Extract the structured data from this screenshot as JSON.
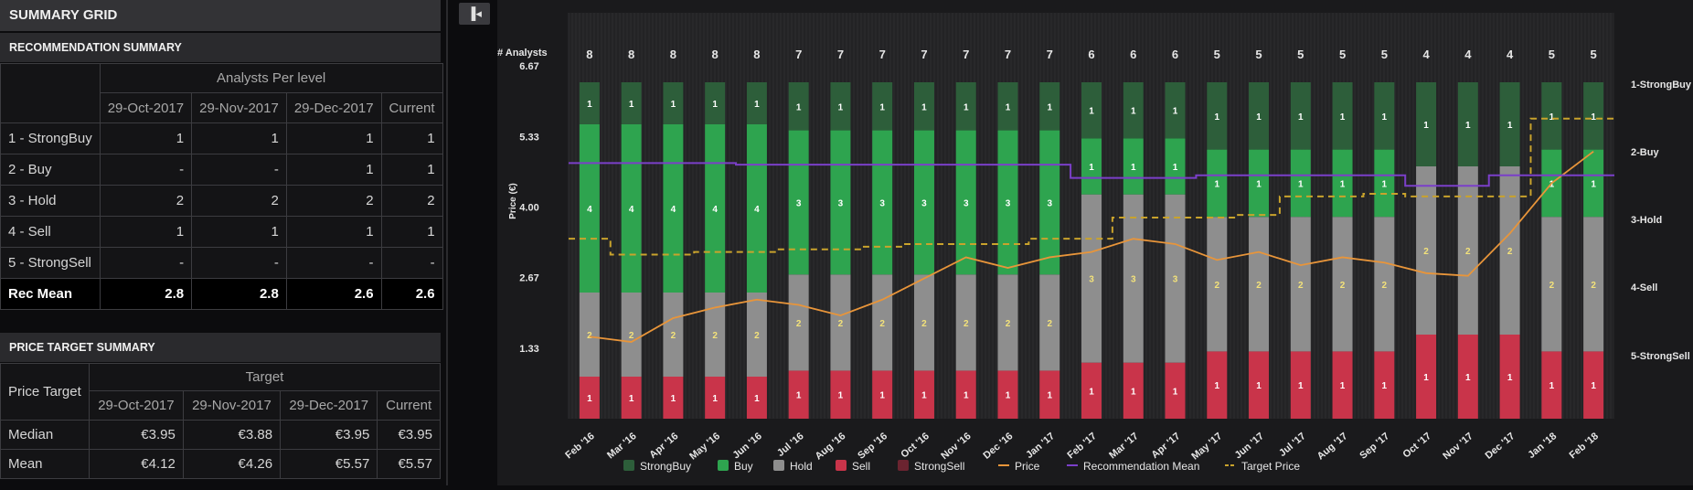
{
  "header": {
    "title": "SUMMARY GRID"
  },
  "recommendation_summary": {
    "title": "RECOMMENDATION SUMMARY",
    "group_header": "Analysts Per level",
    "columns": [
      "29-Oct-2017",
      "29-Nov-2017",
      "29-Dec-2017",
      "Current"
    ],
    "rows": [
      {
        "label": "1 - StrongBuy",
        "values": [
          "1",
          "1",
          "1",
          "1"
        ]
      },
      {
        "label": "2 - Buy",
        "values": [
          "-",
          "-",
          "1",
          "1"
        ]
      },
      {
        "label": "3 - Hold",
        "values": [
          "2",
          "2",
          "2",
          "2"
        ]
      },
      {
        "label": "4 - Sell",
        "values": [
          "1",
          "1",
          "1",
          "1"
        ]
      },
      {
        "label": "5 - StrongSell",
        "values": [
          "-",
          "-",
          "-",
          "-"
        ]
      }
    ],
    "mean_row": {
      "label": "Rec Mean",
      "values": [
        "2.8",
        "2.8",
        "2.6",
        "2.6"
      ]
    }
  },
  "price_target_summary": {
    "title": "PRICE TARGET SUMMARY",
    "row_header": "Price Target",
    "group_header": "Target",
    "columns": [
      "29-Oct-2017",
      "29-Nov-2017",
      "29-Dec-2017",
      "Current"
    ],
    "rows": [
      {
        "label": "Median",
        "values": [
          "€3.95",
          "€3.88",
          "€3.95",
          "€3.95"
        ]
      },
      {
        "label": "Mean",
        "values": [
          "€4.12",
          "€4.26",
          "€5.57",
          "€5.57"
        ]
      }
    ]
  },
  "toolbar": {
    "collapse_icon": "collapse-panel-icon"
  },
  "chart_data": {
    "type": "bar",
    "title": "",
    "analysts_label": "# Analysts",
    "ylabel": "Price (€)",
    "ylim": [
      0,
      7.67
    ],
    "y_ticks": [
      "6.67",
      "5.33",
      "4.00",
      "2.67",
      "1.33"
    ],
    "y_tick_values": [
      6.67,
      5.33,
      4.0,
      2.67,
      1.33
    ],
    "right_levels": [
      "1-StrongBuy",
      "2-Buy",
      "3-Hold",
      "4-Sell",
      "5-StrongSell"
    ],
    "categories": [
      "Feb '16",
      "Mar '16",
      "Apr '16",
      "May '16",
      "Jun '16",
      "Jul '16",
      "Aug '16",
      "Sep '16",
      "Oct '16",
      "Nov '16",
      "Dec '16",
      "Jan '17",
      "Feb '17",
      "Mar '17",
      "Apr '17",
      "May '17",
      "Jun '17",
      "Jul '17",
      "Aug '17",
      "Sep '17",
      "Oct '17",
      "Nov '17",
      "Dec '17",
      "Jan '18",
      "Feb '18"
    ],
    "analysts": [
      8,
      8,
      8,
      8,
      8,
      7,
      7,
      7,
      7,
      7,
      7,
      7,
      6,
      6,
      6,
      5,
      5,
      5,
      5,
      5,
      4,
      4,
      4,
      5,
      5
    ],
    "series": [
      {
        "name": "StrongBuy",
        "color": "#2d5e3a",
        "values": [
          1,
          1,
          1,
          1,
          1,
          1,
          1,
          1,
          1,
          1,
          1,
          1,
          1,
          1,
          1,
          1,
          1,
          1,
          1,
          1,
          1,
          1,
          1,
          1,
          1
        ]
      },
      {
        "name": "Buy",
        "color": "#2ea44f",
        "values": [
          4,
          4,
          4,
          4,
          4,
          3,
          3,
          3,
          3,
          3,
          3,
          3,
          1,
          1,
          1,
          1,
          1,
          1,
          1,
          1,
          0,
          0,
          0,
          1,
          1
        ]
      },
      {
        "name": "Hold",
        "color": "#8e8e8e",
        "values": [
          2,
          2,
          2,
          2,
          2,
          2,
          2,
          2,
          2,
          2,
          2,
          2,
          3,
          3,
          3,
          2,
          2,
          2,
          2,
          2,
          2,
          2,
          2,
          2,
          2
        ]
      },
      {
        "name": "Sell",
        "color": "#c9344a",
        "values": [
          1,
          1,
          1,
          1,
          1,
          1,
          1,
          1,
          1,
          1,
          1,
          1,
          1,
          1,
          1,
          1,
          1,
          1,
          1,
          1,
          1,
          1,
          1,
          1,
          1
        ]
      },
      {
        "name": "StrongSell",
        "color": "#6b2430",
        "values": [
          0,
          0,
          0,
          0,
          0,
          0,
          0,
          0,
          0,
          0,
          0,
          0,
          0,
          0,
          0,
          0,
          0,
          0,
          0,
          0,
          0,
          0,
          0,
          0,
          0
        ]
      }
    ],
    "lines": [
      {
        "name": "Price",
        "color": "#e8953a",
        "style": "solid",
        "values": [
          1.55,
          1.45,
          1.9,
          2.1,
          2.25,
          2.15,
          1.95,
          2.25,
          2.65,
          3.05,
          2.85,
          3.05,
          3.15,
          3.4,
          3.3,
          3.0,
          3.15,
          2.9,
          3.05,
          2.95,
          2.75,
          2.7,
          3.5,
          4.45,
          5.05
        ]
      },
      {
        "name": "Recommendation Mean",
        "color": "#7b3fc9",
        "style": "solid",
        "values": [
          4.83,
          4.83,
          4.83,
          4.83,
          4.8,
          4.8,
          4.8,
          4.8,
          4.8,
          4.8,
          4.8,
          4.8,
          4.55,
          4.55,
          4.55,
          4.6,
          4.6,
          4.6,
          4.6,
          4.6,
          4.4,
          4.4,
          4.6,
          4.6,
          4.6
        ]
      },
      {
        "name": "Target Price",
        "color": "#c9a32c",
        "style": "dashed",
        "values": [
          3.4,
          3.1,
          3.1,
          3.15,
          3.15,
          3.2,
          3.2,
          3.25,
          3.3,
          3.3,
          3.3,
          3.4,
          3.4,
          3.8,
          3.8,
          3.8,
          3.85,
          4.2,
          4.2,
          4.25,
          4.2,
          4.2,
          4.2,
          5.67,
          5.67
        ]
      }
    ],
    "legend": [
      "StrongBuy",
      "Buy",
      "Hold",
      "Sell",
      "StrongSell",
      "Price",
      "Recommendation Mean",
      "Target Price"
    ],
    "legend_colors": [
      "#2d5e3a",
      "#2ea44f",
      "#8e8e8e",
      "#c9344a",
      "#6b2430",
      "#e8953a",
      "#7b3fc9",
      "#c9a32c"
    ],
    "legend_position": "bottom"
  }
}
